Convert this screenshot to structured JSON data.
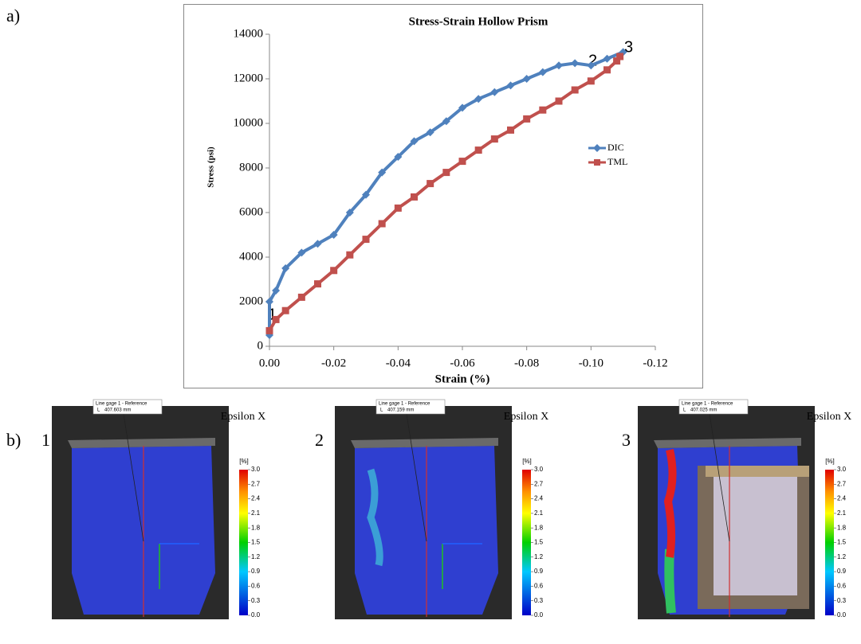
{
  "labels": {
    "a": "a)",
    "b": "b)"
  },
  "chart_data": {
    "type": "line",
    "title": "Stress-Strain Hollow Prism",
    "x_label": "Strain (%)",
    "y_label": "Stress (psi)",
    "xlim": [
      0,
      -0.12
    ],
    "ylim": [
      0,
      14000
    ],
    "xticks": [
      {
        "value": 0,
        "label": "0.00"
      },
      {
        "value": -0.02,
        "label": "-0.02"
      },
      {
        "value": -0.04,
        "label": "-0.04"
      },
      {
        "value": -0.06,
        "label": "-0.06"
      },
      {
        "value": -0.08,
        "label": "-0.08"
      },
      {
        "value": -0.1,
        "label": "-0.10"
      },
      {
        "value": -0.12,
        "label": "-0.12"
      }
    ],
    "yticks": [
      0,
      2000,
      4000,
      6000,
      8000,
      10000,
      12000,
      14000
    ],
    "legend": "right",
    "annotations": [
      "1",
      "2",
      "3"
    ],
    "series": [
      {
        "name": "DIC",
        "color": "#4f81bd",
        "marker": "diamond",
        "x": [
          0,
          0,
          -0.002,
          -0.005,
          -0.01,
          -0.015,
          -0.02,
          -0.025,
          -0.03,
          -0.035,
          -0.04,
          -0.045,
          -0.05,
          -0.055,
          -0.06,
          -0.065,
          -0.07,
          -0.075,
          -0.08,
          -0.085,
          -0.09,
          -0.095,
          -0.1,
          -0.105,
          -0.11
        ],
        "values": [
          500,
          2000,
          2500,
          3500,
          4200,
          4600,
          5000,
          6000,
          6800,
          7800,
          8500,
          9200,
          9600,
          10100,
          10700,
          11100,
          11400,
          11700,
          12000,
          12300,
          12600,
          12700,
          12600,
          12900,
          13200
        ]
      },
      {
        "name": "TML",
        "color": "#c0504d",
        "marker": "square",
        "x": [
          0,
          -0.002,
          -0.005,
          -0.01,
          -0.015,
          -0.02,
          -0.025,
          -0.03,
          -0.035,
          -0.04,
          -0.045,
          -0.05,
          -0.055,
          -0.06,
          -0.065,
          -0.07,
          -0.075,
          -0.08,
          -0.085,
          -0.09,
          -0.095,
          -0.1,
          -0.105,
          -0.108,
          -0.109
        ],
        "values": [
          700,
          1200,
          1600,
          2200,
          2800,
          3400,
          4100,
          4800,
          5500,
          6200,
          6700,
          7300,
          7800,
          8300,
          8800,
          9300,
          9700,
          10200,
          10600,
          11000,
          11500,
          11900,
          12400,
          12800,
          13000
        ]
      }
    ]
  },
  "colorbar": {
    "lim": [
      0,
      3
    ],
    "ticks": [
      {
        "value": 3,
        "label": "3.0"
      },
      {
        "value": 2.7,
        "label": "2.7"
      },
      {
        "value": 2.4,
        "label": "2.4"
      },
      {
        "value": 2.1,
        "label": "2.1"
      },
      {
        "value": 1.8,
        "label": "1.8"
      },
      {
        "value": 1.5,
        "label": "1.5"
      },
      {
        "value": 1.2,
        "label": "1.2"
      },
      {
        "value": 0.9,
        "label": "0.9"
      },
      {
        "value": 0.6,
        "label": "0.6"
      },
      {
        "value": 0.3,
        "label": "0.3"
      },
      {
        "value": 0,
        "label": "0.0"
      }
    ]
  },
  "dic_panels": [
    {
      "label": "1",
      "gage_title": "Line gage 1 - Reference",
      "gage_key": "L",
      "gage_length": "407.603 mm",
      "colorbar_title": "Epsilon X",
      "colorbar_unit": "[%]"
    },
    {
      "label": "2",
      "gage_title": "Line gage 1 - Reference",
      "gage_key": "L",
      "gage_length": "407.159 mm",
      "colorbar_title": "Epsilon X",
      "colorbar_unit": "[%]"
    },
    {
      "label": "3",
      "gage_title": "Line gage 1 - Reference",
      "gage_key": "L",
      "gage_length": "407.025 mm",
      "colorbar_title": "Epsilon X",
      "colorbar_unit": "[%]"
    }
  ]
}
